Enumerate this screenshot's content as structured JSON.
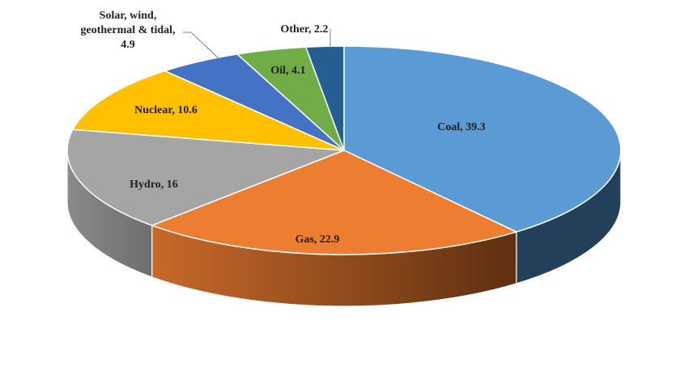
{
  "chart_data": {
    "type": "pie",
    "title": "",
    "slices": [
      {
        "label": "Coal",
        "value": 39.3,
        "display": "Coal, 39.3",
        "color": "#5B9BD5",
        "side": "#22405A"
      },
      {
        "label": "Gas",
        "value": 22.9,
        "display": "Gas, 22.9",
        "color": "#ED7D31",
        "side": "#9A4E1C"
      },
      {
        "label": "Hydro",
        "value": 16,
        "display": "Hydro, 16",
        "color": "#A5A5A5",
        "side": "#7A7A7A"
      },
      {
        "label": "Nuclear",
        "value": 10.6,
        "display": "Nuclear, 10.6",
        "color": "#FFC000",
        "side": "#B08600"
      },
      {
        "label": "Solar, wind, geothermal & tidal",
        "value": 4.9,
        "display_lines": [
          "Solar, wind,",
          "geothermal & tidal,",
          "4.9"
        ],
        "color": "#4472C4",
        "side": "#2B4A80"
      },
      {
        "label": "Oil",
        "value": 4.1,
        "display": "Oil, 4.1",
        "color": "#70AD47",
        "side": "#4A7530"
      },
      {
        "label": "Other",
        "value": 2.2,
        "display": "Other, 2.2",
        "color": "#255E91",
        "side": "#173B5C"
      }
    ]
  }
}
